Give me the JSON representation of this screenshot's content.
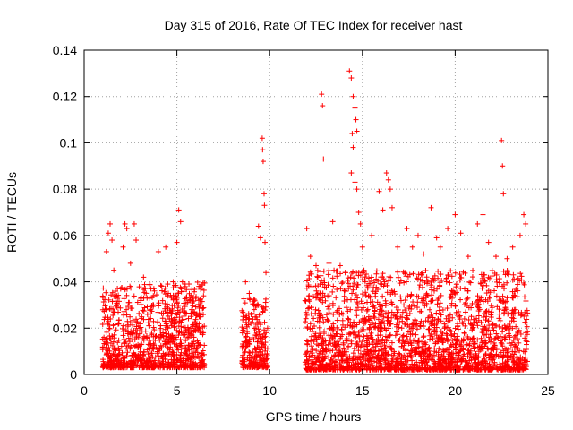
{
  "chart_data": {
    "type": "scatter",
    "title": "Day 315 of 2016, Rate Of TEC Index for receiver hast",
    "xlabel": "GPS time / hours",
    "ylabel": "ROTI / TECUs",
    "xlim": [
      0,
      25
    ],
    "ylim": [
      0,
      0.14
    ],
    "x_ticks": [
      0,
      5,
      10,
      15,
      20,
      25
    ],
    "x_tick_labels": [
      "0",
      "5",
      "10",
      "15",
      "20",
      "25"
    ],
    "y_ticks": [
      0,
      0.02,
      0.04,
      0.06,
      0.08,
      0.1,
      0.12,
      0.14
    ],
    "y_tick_labels": [
      "0",
      "0.02",
      "0.04",
      "0.06",
      "0.08",
      "0.1",
      "0.12",
      "0.14"
    ],
    "grid": true,
    "marker": "plus",
    "marker_color": "#ff0000",
    "series": [
      {
        "points": [
          [
            1.2,
            0.053
          ],
          [
            1.3,
            0.061
          ],
          [
            1.4,
            0.065
          ],
          [
            1.5,
            0.058
          ],
          [
            1.6,
            0.045
          ],
          [
            2.1,
            0.055
          ],
          [
            2.2,
            0.065
          ],
          [
            2.3,
            0.063
          ],
          [
            2.5,
            0.048
          ],
          [
            2.7,
            0.065
          ],
          [
            2.8,
            0.058
          ],
          [
            3.2,
            0.042
          ],
          [
            3.6,
            0.037
          ],
          [
            4.0,
            0.053
          ],
          [
            4.4,
            0.055
          ],
          [
            4.8,
            0.04
          ],
          [
            5.0,
            0.057
          ],
          [
            5.1,
            0.071
          ],
          [
            5.2,
            0.066
          ],
          [
            5.3,
            0.04
          ],
          [
            5.5,
            0.031
          ],
          [
            5.8,
            0.028
          ],
          [
            6.2,
            0.025
          ],
          [
            8.7,
            0.04
          ],
          [
            8.9,
            0.035
          ],
          [
            9.2,
            0.032
          ],
          [
            9.4,
            0.064
          ],
          [
            9.5,
            0.059
          ],
          [
            9.6,
            0.102
          ],
          [
            9.62,
            0.097
          ],
          [
            9.65,
            0.092
          ],
          [
            9.7,
            0.078
          ],
          [
            9.72,
            0.073
          ],
          [
            9.75,
            0.057
          ],
          [
            9.8,
            0.044
          ],
          [
            12.0,
            0.063
          ],
          [
            12.2,
            0.051
          ],
          [
            12.5,
            0.047
          ],
          [
            12.8,
            0.121
          ],
          [
            12.85,
            0.116
          ],
          [
            12.9,
            0.093
          ],
          [
            13.2,
            0.048
          ],
          [
            13.4,
            0.066
          ],
          [
            13.8,
            0.047
          ],
          [
            14.3,
            0.131
          ],
          [
            14.4,
            0.128
          ],
          [
            14.5,
            0.12
          ],
          [
            14.6,
            0.115
          ],
          [
            14.65,
            0.11
          ],
          [
            14.7,
            0.105
          ],
          [
            14.45,
            0.104
          ],
          [
            14.5,
            0.098
          ],
          [
            14.4,
            0.087
          ],
          [
            14.6,
            0.083
          ],
          [
            14.7,
            0.08
          ],
          [
            14.8,
            0.07
          ],
          [
            14.9,
            0.065
          ],
          [
            15.0,
            0.055
          ],
          [
            15.5,
            0.06
          ],
          [
            15.9,
            0.079
          ],
          [
            16.1,
            0.071
          ],
          [
            16.3,
            0.087
          ],
          [
            16.4,
            0.084
          ],
          [
            16.5,
            0.08
          ],
          [
            16.6,
            0.072
          ],
          [
            16.9,
            0.055
          ],
          [
            17.4,
            0.063
          ],
          [
            17.7,
            0.055
          ],
          [
            18.0,
            0.06
          ],
          [
            18.3,
            0.052
          ],
          [
            18.7,
            0.072
          ],
          [
            19.0,
            0.059
          ],
          [
            19.2,
            0.055
          ],
          [
            19.6,
            0.063
          ],
          [
            20.0,
            0.069
          ],
          [
            20.3,
            0.061
          ],
          [
            20.7,
            0.051
          ],
          [
            21.2,
            0.065
          ],
          [
            21.5,
            0.069
          ],
          [
            21.8,
            0.057
          ],
          [
            22.2,
            0.051
          ],
          [
            22.5,
            0.101
          ],
          [
            22.55,
            0.09
          ],
          [
            22.6,
            0.078
          ],
          [
            22.8,
            0.05
          ],
          [
            23.1,
            0.055
          ],
          [
            23.5,
            0.06
          ],
          [
            23.7,
            0.069
          ],
          [
            23.8,
            0.065
          ]
        ]
      }
    ],
    "bands": [
      {
        "x": [
          1.0,
          6.5
        ],
        "y": [
          0.003,
          0.04
        ]
      },
      {
        "x": [
          8.5,
          9.9
        ],
        "y": [
          0.003,
          0.033
        ]
      },
      {
        "x": [
          11.9,
          23.9
        ],
        "y": [
          0.002,
          0.045
        ]
      }
    ]
  }
}
